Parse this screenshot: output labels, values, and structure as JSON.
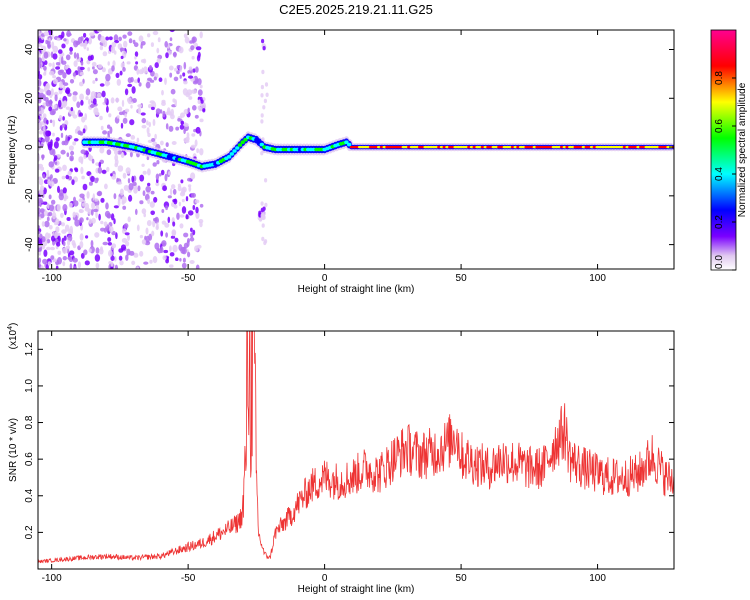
{
  "figure": {
    "title": "C2E5.2025.219.21.11.G25"
  },
  "chart_data": [
    {
      "type": "heatmap",
      "xlabel": "Height of straight line (km)",
      "ylabel": "Frequency (Hz)",
      "xlim": [
        -105,
        128
      ],
      "ylim": [
        -50,
        48
      ],
      "xticks": [
        -100,
        -50,
        0,
        50,
        100
      ],
      "yticks": [
        -40,
        -20,
        0,
        20,
        40
      ],
      "grid": false,
      "colorbar": {
        "label": "Normalized spectral amplitude",
        "range": [
          0.0,
          1.0
        ],
        "ticks": [
          "0.0",
          "0.2",
          "0.4",
          "0.6",
          "0.8"
        ],
        "colormap": [
          "#ffffff",
          "#e0c8f0",
          "#7a00ff",
          "#0000ff",
          "#00ffff",
          "#00ff00",
          "#ffff00",
          "#ff0000",
          "#ff0090"
        ]
      },
      "ridge": {
        "x": [
          -88,
          -80,
          -70,
          -60,
          -50,
          -45,
          -40,
          -35,
          -30,
          -28,
          -25,
          -22,
          -18,
          -15,
          -10,
          -5,
          0,
          5,
          8,
          10,
          20,
          50,
          80,
          110,
          128
        ],
        "y": [
          2,
          2,
          0,
          -3,
          -6,
          -8,
          -7,
          -4,
          2,
          4,
          3,
          0,
          -1,
          -1,
          -1,
          -1,
          -1,
          1,
          2,
          0,
          0,
          0,
          0,
          0,
          0
        ]
      }
    },
    {
      "type": "line",
      "xlabel": "Height of straight line (km)",
      "ylabel": "SNR (10 * v/v)",
      "y_multiplier": "(x10",
      "y_multiplier_exp": "4",
      "xlim": [
        -105,
        128
      ],
      "ylim": [
        0,
        1.3
      ],
      "xticks": [
        -100,
        -50,
        0,
        50,
        100
      ],
      "yticks": [
        "0.2",
        "0.4",
        "0.6",
        "0.8",
        "1.0",
        "1.2"
      ],
      "ytick_values": [
        0.2,
        0.4,
        0.6,
        0.8,
        1.0,
        1.2
      ],
      "line_color": "#ee3333",
      "x": [
        -105,
        -90,
        -80,
        -70,
        -60,
        -50,
        -45,
        -40,
        -35,
        -32,
        -30,
        -29,
        -28,
        -27,
        -26,
        -25,
        -24,
        -22,
        -20,
        -18,
        -15,
        -12,
        -10,
        -5,
        0,
        5,
        10,
        15,
        20,
        25,
        30,
        35,
        40,
        45,
        48,
        50,
        55,
        60,
        65,
        70,
        75,
        80,
        85,
        88,
        90,
        95,
        100,
        105,
        110,
        115,
        120,
        125,
        128
      ],
      "y": [
        0.04,
        0.06,
        0.07,
        0.06,
        0.07,
        0.12,
        0.14,
        0.18,
        0.22,
        0.25,
        0.3,
        0.55,
        1.28,
        0.95,
        1.27,
        0.45,
        0.18,
        0.08,
        0.06,
        0.2,
        0.25,
        0.3,
        0.35,
        0.45,
        0.5,
        0.48,
        0.5,
        0.55,
        0.52,
        0.6,
        0.66,
        0.62,
        0.64,
        0.68,
        0.75,
        0.62,
        0.58,
        0.55,
        0.6,
        0.58,
        0.55,
        0.55,
        0.7,
        0.76,
        0.6,
        0.55,
        0.52,
        0.5,
        0.5,
        0.52,
        0.62,
        0.5,
        0.48
      ]
    }
  ]
}
